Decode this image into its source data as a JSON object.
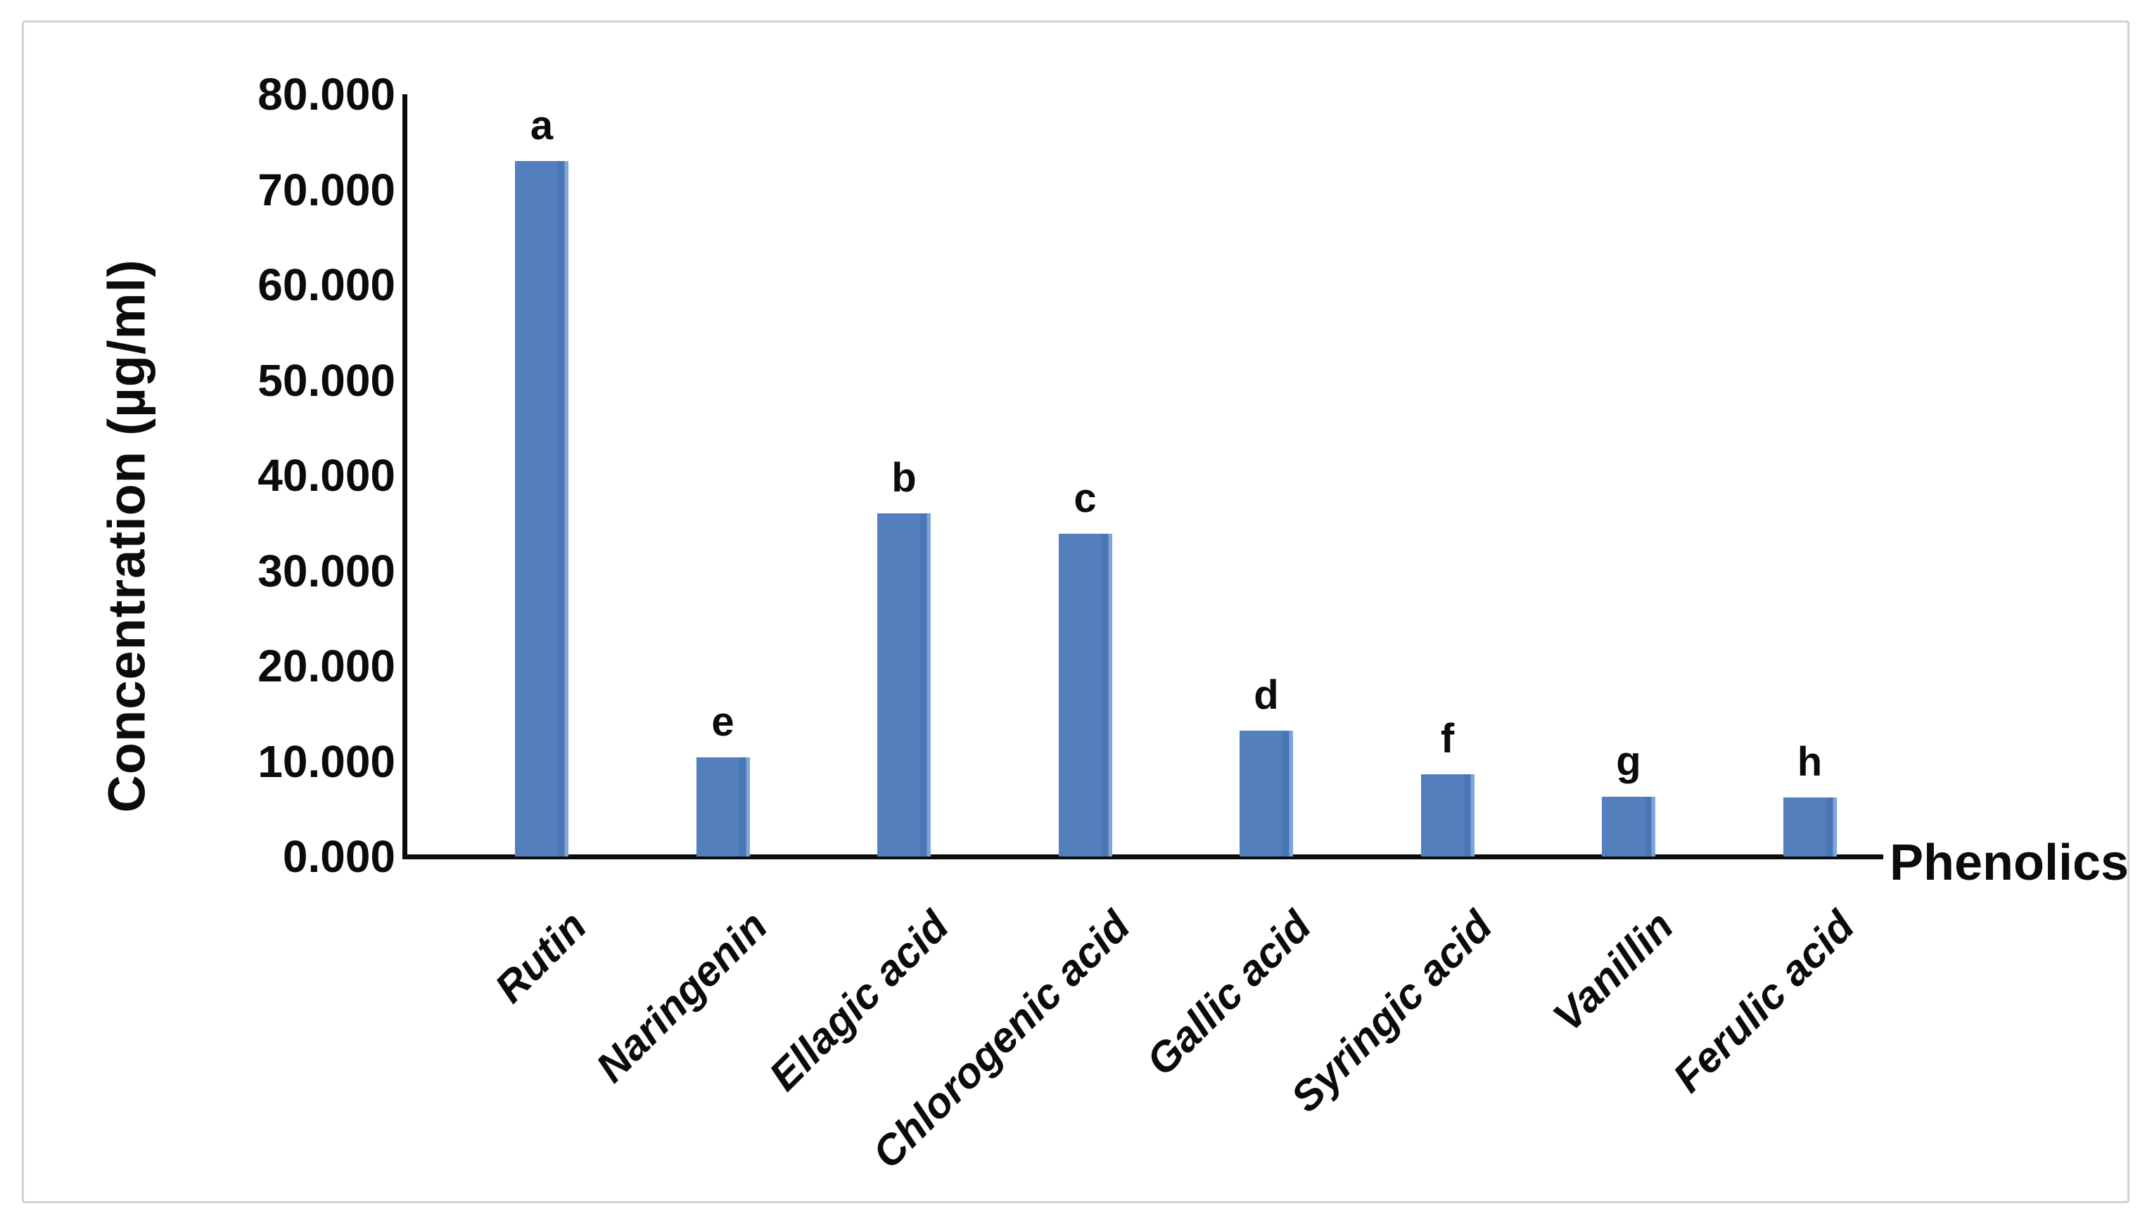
{
  "figure": {
    "background_color": "#ffffff",
    "border_color": "#d2d2d2",
    "axis_color": "#0b0b0b"
  },
  "chart_data": {
    "type": "bar",
    "title": "",
    "xlabel": "Phenolics",
    "ylabel": "Concentration (µg/ml)",
    "categories": [
      "Rutin",
      "Naringenin",
      "Ellagic acid",
      "Chlorogenic acid",
      "Gallic acid",
      "Syringic acid",
      "Vanillin",
      "Ferulic acid"
    ],
    "values": [
      73.0,
      10.4,
      36.0,
      33.9,
      13.2,
      8.6,
      6.3,
      6.2
    ],
    "bar_letters": [
      "a",
      "e",
      "b",
      "c",
      "d",
      "f",
      "g",
      "h"
    ],
    "bar_color": "#4F81BD",
    "ylim": [
      0,
      80
    ],
    "ytick_labels": [
      "0.000",
      "10.000",
      "20.000",
      "30.000",
      "40.000",
      "50.000",
      "60.000",
      "70.000",
      "80.000"
    ],
    "ytick_values": [
      0,
      10,
      20,
      30,
      40,
      50,
      60,
      70,
      80
    ],
    "grid": "off",
    "legend": "none"
  }
}
